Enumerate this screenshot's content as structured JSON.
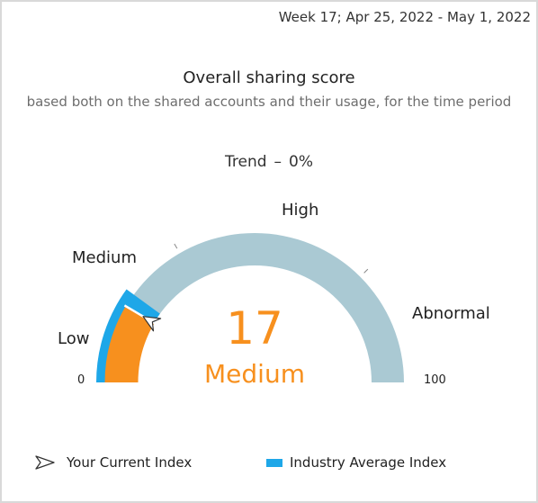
{
  "header": {
    "period": "Week 17; Apr 25, 2022 - May 1, 2022"
  },
  "score_card": {
    "title": "Overall sharing score",
    "subtitle": "based both on the shared accounts and their usage, for the time period",
    "trend": {
      "label": "Trend",
      "separator": "–",
      "value": "0%"
    },
    "score_value": "17",
    "score_level": "Medium",
    "current_index": 17,
    "industry_average_index": 20,
    "range": {
      "min": "0",
      "max": "100"
    },
    "zones": {
      "low": "Low",
      "medium": "Medium",
      "high": "High",
      "abnormal": "Abnormal"
    },
    "colors": {
      "current": "#f7901e",
      "industry_average": "#1ea7e8",
      "track": "#aac9d3",
      "score_text": "#f7901e"
    }
  },
  "legend": {
    "current_index": "Your Current Index",
    "industry_average": "Industry Average Index"
  }
}
